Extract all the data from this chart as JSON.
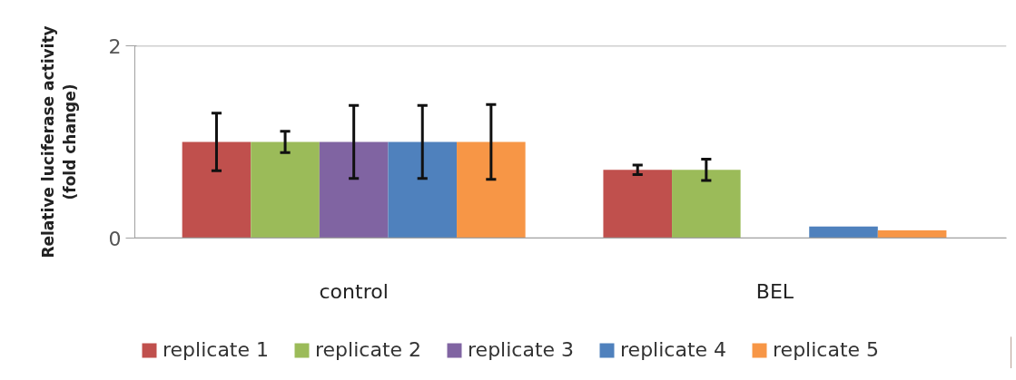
{
  "chart_data": {
    "type": "bar",
    "ylabel": "Relative luciferase activity\n(fold change)",
    "categories": [
      "control",
      "BEL"
    ],
    "series": [
      {
        "name": "replicate 1",
        "color": "#c0504d",
        "values": [
          1.0,
          0.71
        ],
        "errors": [
          0.3,
          0.05
        ]
      },
      {
        "name": "replicate 2",
        "color": "#9bbb59",
        "values": [
          1.0,
          0.71
        ],
        "errors": [
          0.11,
          0.11
        ]
      },
      {
        "name": "replicate 3",
        "color": "#8064a2",
        "values": [
          1.0,
          null
        ],
        "errors": [
          0.38,
          null
        ]
      },
      {
        "name": "replicate 4",
        "color": "#4f81bd",
        "values": [
          1.0,
          0.12
        ],
        "errors": [
          0.38,
          null
        ]
      },
      {
        "name": "replicate 5",
        "color": "#f79646",
        "values": [
          1.0,
          0.08
        ],
        "errors": [
          0.39,
          null
        ]
      }
    ],
    "ylim": [
      0,
      2
    ],
    "yticks": [
      0,
      2
    ],
    "grid": "y",
    "legend": "bottom"
  }
}
